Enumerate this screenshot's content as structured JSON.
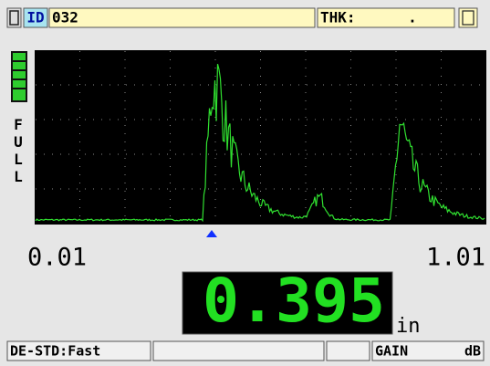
{
  "header": {
    "id_label": "ID",
    "id_value": "032",
    "thk_label": "THK:",
    "thk_value": "."
  },
  "gain_scale": "FULL",
  "axis": {
    "start": "0.01",
    "end": "1.01"
  },
  "reading": {
    "value": "0.395",
    "unit": "in"
  },
  "status": {
    "mode": "DE-STD:Fast",
    "gain_label": "GAIN",
    "gain_unit": "dB"
  }
}
